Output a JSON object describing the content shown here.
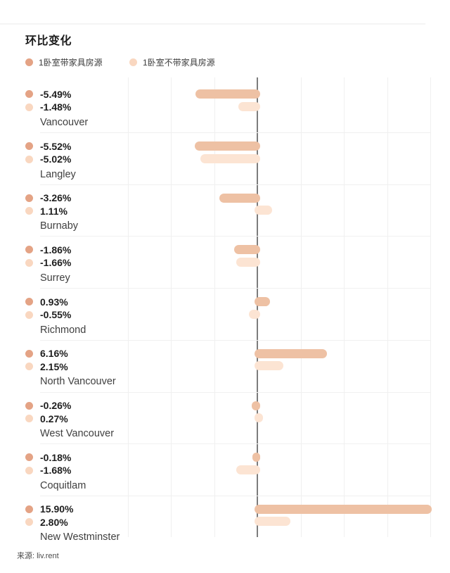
{
  "header": {
    "title": "环比变化"
  },
  "legend": [
    {
      "label": "1卧室带家具房源",
      "color": "#e4a385"
    },
    {
      "label": "1卧室不带家具房源",
      "color": "#f9d7c0"
    }
  ],
  "source": "来源: liv.rent",
  "colors": {
    "furnished_bar": "#eec1a4",
    "unfurnished_bar": "#fce4d3",
    "zero_axis": "#7c7c7c",
    "gridline": "#f0f0f0"
  },
  "chart_data": {
    "type": "bar",
    "orientation": "horizontal",
    "title": "环比变化",
    "unit": "%",
    "grid": true,
    "legend_position": "top",
    "xlim": [
      -12,
      16
    ],
    "grid_step": 4,
    "categories": [
      "Vancouver",
      "Langley",
      "Burnaby",
      "Surrey",
      "Richmond",
      "North Vancouver",
      "West Vancouver",
      "Coquitlam",
      "New Westminster"
    ],
    "series": [
      {
        "name": "1卧室带家具房源",
        "dot_color": "#e4a385",
        "bar_color": "#eec1a4",
        "values": [
          -5.49,
          -5.52,
          -3.26,
          -1.86,
          0.93,
          6.16,
          -0.26,
          -0.18,
          15.9
        ],
        "labels": [
          "-5.49%",
          "-5.52%",
          "-3.26%",
          "-1.86%",
          "0.93%",
          "6.16%",
          "-0.26%",
          "-0.18%",
          "15.90%"
        ]
      },
      {
        "name": "1卧室不带家具房源",
        "dot_color": "#f9d7c0",
        "bar_color": "#fce4d3",
        "values": [
          -1.48,
          -5.02,
          1.11,
          -1.66,
          -0.55,
          2.15,
          0.27,
          -1.68,
          2.8
        ],
        "labels": [
          "-1.48%",
          "-5.02%",
          "1.11%",
          "-1.66%",
          "-0.55%",
          "2.15%",
          "0.27%",
          "-1.68%",
          "2.80%"
        ]
      }
    ]
  }
}
